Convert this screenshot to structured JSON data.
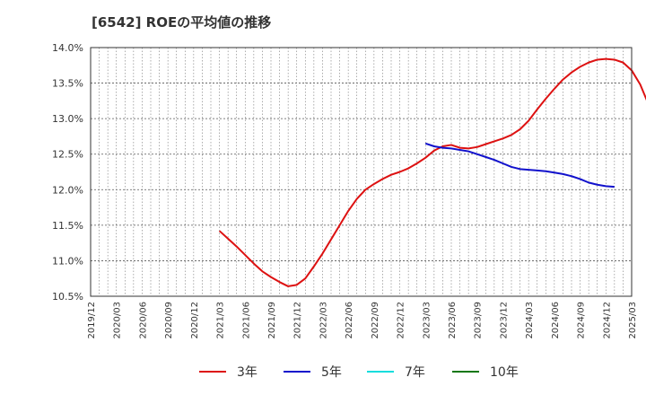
{
  "chart_data": {
    "type": "line",
    "title": "[6542]  ROEの平均値の推移",
    "xlabel": "",
    "ylabel": "",
    "ylim": [
      10.5,
      14.0
    ],
    "grid": true,
    "y_ticks": [
      "14.0%",
      "13.5%",
      "13.0%",
      "12.5%",
      "12.0%",
      "11.5%",
      "11.0%",
      "10.5%"
    ],
    "x_ticks": [
      "2019/12",
      "2020/03",
      "2020/06",
      "2020/09",
      "2020/12",
      "2021/03",
      "2021/06",
      "2021/09",
      "2021/12",
      "2022/03",
      "2022/06",
      "2022/09",
      "2022/12",
      "2023/03",
      "2023/06",
      "2023/09",
      "2023/12",
      "2024/03",
      "2024/06",
      "2024/09",
      "2024/12",
      "2025/03"
    ],
    "legend_position": "bottom",
    "series": [
      {
        "name": "3年",
        "color": "#dd1111",
        "points": [
          [
            "2021/03",
            11.42
          ],
          [
            "2021/04",
            11.31
          ],
          [
            "2021/05",
            11.2
          ],
          [
            "2021/06",
            11.08
          ],
          [
            "2021/07",
            10.96
          ],
          [
            "2021/08",
            10.85
          ],
          [
            "2021/09",
            10.77
          ],
          [
            "2021/10",
            10.7
          ],
          [
            "2021/11",
            10.64
          ],
          [
            "2021/12",
            10.66
          ],
          [
            "2022/01",
            10.75
          ],
          [
            "2022/02",
            10.92
          ],
          [
            "2022/03",
            11.1
          ],
          [
            "2022/04",
            11.3
          ],
          [
            "2022/05",
            11.5
          ],
          [
            "2022/06",
            11.7
          ],
          [
            "2022/07",
            11.87
          ],
          [
            "2022/08",
            12.0
          ],
          [
            "2022/09",
            12.08
          ],
          [
            "2022/10",
            12.15
          ],
          [
            "2022/11",
            12.21
          ],
          [
            "2022/12",
            12.25
          ],
          [
            "2023/01",
            12.3
          ],
          [
            "2023/02",
            12.37
          ],
          [
            "2023/03",
            12.45
          ],
          [
            "2023/04",
            12.55
          ],
          [
            "2023/05",
            12.61
          ],
          [
            "2023/06",
            12.63
          ],
          [
            "2023/07",
            12.59
          ],
          [
            "2023/08",
            12.58
          ],
          [
            "2023/09",
            12.6
          ],
          [
            "2023/10",
            12.64
          ],
          [
            "2023/11",
            12.68
          ],
          [
            "2023/12",
            12.72
          ],
          [
            "2024/01",
            12.77
          ],
          [
            "2024/02",
            12.85
          ],
          [
            "2024/03",
            12.97
          ],
          [
            "2024/04",
            13.13
          ],
          [
            "2024/05",
            13.28
          ],
          [
            "2024/06",
            13.42
          ],
          [
            "2024/07",
            13.55
          ],
          [
            "2024/08",
            13.65
          ],
          [
            "2024/09",
            13.73
          ],
          [
            "2024/10",
            13.79
          ],
          [
            "2024/11",
            13.83
          ],
          [
            "2024/12",
            13.84
          ],
          [
            "2025/01",
            13.83
          ],
          [
            "2025/02",
            13.79
          ],
          [
            "2025/03",
            13.68
          ],
          [
            "2025/04",
            13.48
          ],
          [
            "2025/05",
            13.19
          ]
        ]
      },
      {
        "name": "5年",
        "color": "#1111cc",
        "points": [
          [
            "2023/03",
            12.65
          ],
          [
            "2023/04",
            12.61
          ],
          [
            "2023/05",
            12.59
          ],
          [
            "2023/06",
            12.58
          ],
          [
            "2023/07",
            12.56
          ],
          [
            "2023/08",
            12.54
          ],
          [
            "2023/09",
            12.5
          ],
          [
            "2023/10",
            12.46
          ],
          [
            "2023/11",
            12.42
          ],
          [
            "2023/12",
            12.37
          ],
          [
            "2024/01",
            12.32
          ],
          [
            "2024/02",
            12.29
          ],
          [
            "2024/03",
            12.28
          ],
          [
            "2024/04",
            12.27
          ],
          [
            "2024/05",
            12.26
          ],
          [
            "2024/06",
            12.24
          ],
          [
            "2024/07",
            12.22
          ],
          [
            "2024/08",
            12.19
          ],
          [
            "2024/09",
            12.15
          ],
          [
            "2024/10",
            12.1
          ],
          [
            "2024/11",
            12.07
          ],
          [
            "2024/12",
            12.05
          ],
          [
            "2025/01",
            12.04
          ]
        ]
      },
      {
        "name": "7年",
        "color": "#11dddd",
        "points": []
      },
      {
        "name": "10年",
        "color": "#117711",
        "points": []
      }
    ]
  }
}
